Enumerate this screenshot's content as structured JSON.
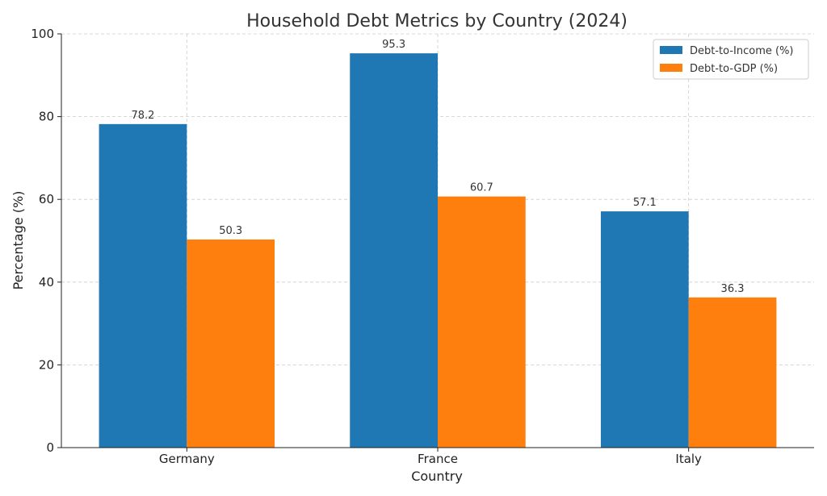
{
  "chart_data": {
    "type": "bar",
    "title": "Household Debt Metrics by Country (2024)",
    "xlabel": "Country",
    "ylabel": "Percentage (%)",
    "categories": [
      "Germany",
      "France",
      "Italy"
    ],
    "series": [
      {
        "name": "Debt-to-Income (%)",
        "values": [
          78.2,
          95.3,
          57.1
        ],
        "color": "#1f77b4"
      },
      {
        "name": "Debt-to-GDP (%)",
        "values": [
          50.3,
          60.7,
          36.3
        ],
        "color": "#ff7f0e"
      }
    ],
    "value_labels": [
      [
        "78.2",
        "95.3",
        "57.1"
      ],
      [
        "50.3",
        "60.7",
        "36.3"
      ]
    ],
    "ylim": [
      0,
      100
    ],
    "yticks": [
      "0",
      "20",
      "40",
      "60",
      "80",
      "100"
    ],
    "grid": true,
    "legend_position": "top-right"
  }
}
